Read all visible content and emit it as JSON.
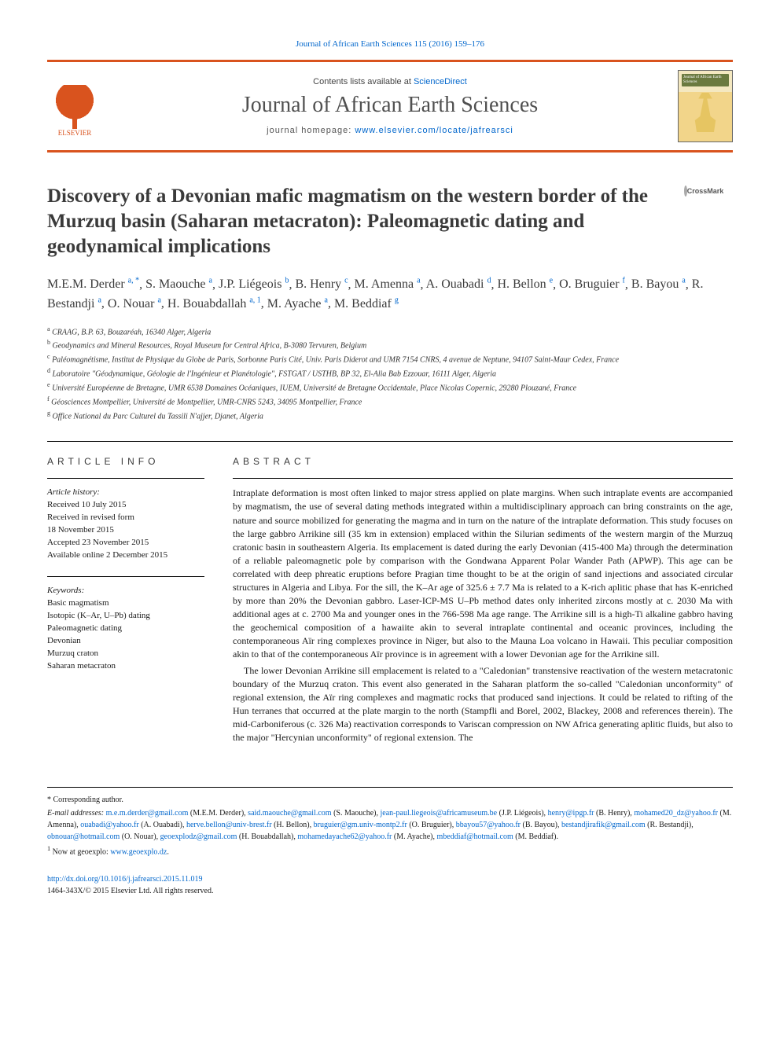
{
  "top_citation": "Journal of African Earth Sciences 115 (2016) 159–176",
  "header": {
    "contents_prefix": "Contents lists available at ",
    "contents_link": "ScienceDirect",
    "journal_title": "Journal of African Earth Sciences",
    "homepage_prefix": "journal homepage: ",
    "homepage_url": "www.elsevier.com/locate/jafrearsci",
    "publisher": "ELSEVIER",
    "cover_label": "Journal of African Earth Sciences"
  },
  "crossmark_label": "CrossMark",
  "title": "Discovery of a Devonian mafic magmatism on the western border of the Murzuq basin (Saharan metacraton): Paleomagnetic dating and geodynamical implications",
  "authors_html_parts": [
    {
      "name": "M.E.M. Derder",
      "sup": "a, *"
    },
    {
      "name": "S. Maouche",
      "sup": "a"
    },
    {
      "name": "J.P. Liégeois",
      "sup": "b"
    },
    {
      "name": "B. Henry",
      "sup": "c"
    },
    {
      "name": "M. Amenna",
      "sup": "a"
    },
    {
      "name": "A. Ouabadi",
      "sup": "d"
    },
    {
      "name": "H. Bellon",
      "sup": "e"
    },
    {
      "name": "O. Bruguier",
      "sup": "f"
    },
    {
      "name": "B. Bayou",
      "sup": "a"
    },
    {
      "name": "R. Bestandji",
      "sup": "a"
    },
    {
      "name": "O. Nouar",
      "sup": "a"
    },
    {
      "name": "H. Bouabdallah",
      "sup": "a, 1"
    },
    {
      "name": "M. Ayache",
      "sup": "a"
    },
    {
      "name": "M. Beddiaf",
      "sup": "g"
    }
  ],
  "affiliations": [
    {
      "key": "a",
      "text": "CRAAG, B.P. 63, Bouzaréah, 16340 Alger, Algeria"
    },
    {
      "key": "b",
      "text": "Geodynamics and Mineral Resources, Royal Museum for Central Africa, B-3080 Tervuren, Belgium"
    },
    {
      "key": "c",
      "text": "Paléomagnétisme, Institut de Physique du Globe de Paris, Sorbonne Paris Cité, Univ. Paris Diderot and UMR 7154 CNRS, 4 avenue de Neptune, 94107 Saint-Maur Cedex, France"
    },
    {
      "key": "d",
      "text": "Laboratoire \"Géodynamique, Géologie de l'Ingénieur et Planétologie\", FSTGAT / USTHB, BP 32, El-Alia Bab Ezzouar, 16111 Alger, Algeria"
    },
    {
      "key": "e",
      "text": "Université Européenne de Bretagne, UMR 6538 Domaines Océaniques, IUEM, Université de Bretagne Occidentale, Place Nicolas Copernic, 29280 Plouzané, France"
    },
    {
      "key": "f",
      "text": "Géosciences Montpellier, Université de Montpellier, UMR-CNRS 5243, 34095 Montpellier, France"
    },
    {
      "key": "g",
      "text": "Office National du Parc Culturel du Tassili N'ajjer, Djanet, Algeria"
    }
  ],
  "article_info": {
    "heading": "article info",
    "history_label": "Article history:",
    "history": [
      "Received 10 July 2015",
      "Received in revised form",
      "18 November 2015",
      "Accepted 23 November 2015",
      "Available online 2 December 2015"
    ],
    "keywords_label": "Keywords:",
    "keywords": [
      "Basic magmatism",
      "Isotopic (K–Ar, U–Pb) dating",
      "Paleomagnetic dating",
      "Devonian",
      "Murzuq craton",
      "Saharan metacraton"
    ]
  },
  "abstract": {
    "heading": "abstract",
    "paragraphs": [
      "Intraplate deformation is most often linked to major stress applied on plate margins. When such intraplate events are accompanied by magmatism, the use of several dating methods integrated within a multidisciplinary approach can bring constraints on the age, nature and source mobilized for generating the magma and in turn on the nature of the intraplate deformation. This study focuses on the large gabbro Arrikine sill (35 km in extension) emplaced within the Silurian sediments of the western margin of the Murzuq cratonic basin in southeastern Algeria. Its emplacement is dated during the early Devonian (415-400 Ma) through the determination of a reliable paleomagnetic pole by comparison with the Gondwana Apparent Polar Wander Path (APWP). This age can be correlated with deep phreatic eruptions before Pragian time thought to be at the origin of sand injections and associated circular structures in Algeria and Libya. For the sill, the K–Ar age of 325.6 ± 7.7 Ma is related to a K-rich aplitic phase that has K-enriched by more than 20% the Devonian gabbro. Laser-ICP-MS U–Pb method dates only inherited zircons mostly at c. 2030 Ma with additional ages at c. 2700 Ma and younger ones in the 766-598 Ma age range. The Arrikine sill is a high-Ti alkaline gabbro having the geochemical composition of a hawaiite akin to several intraplate continental and oceanic provinces, including the contemporaneous Aïr ring complexes province in Niger, but also to the Mauna Loa volcano in Hawaii. This peculiar composition akin to that of the contemporaneous Aïr province is in agreement with a lower Devonian age for the Arrikine sill.",
      "The lower Devonian Arrikine sill emplacement is related to a \"Caledonian\" transtensive reactivation of the western metacratonic boundary of the Murzuq craton. This event also generated in the Saharan platform the so-called \"Caledonian unconformity\" of regional extension, the Aïr ring complexes and magmatic rocks that produced sand injections. It could be related to rifting of the Hun terranes that occurred at the plate margin to the north (Stampfli and Borel, 2002, Blackey, 2008 and references therein). The mid-Carboniferous (c. 326 Ma) reactivation corresponds to Variscan compression on NW Africa generating aplitic fluids, but also to the major \"Hercynian unconformity\" of regional extension. The"
    ]
  },
  "footnotes": {
    "corresponding": "* Corresponding author.",
    "email_label": "E-mail addresses:",
    "emails": [
      {
        "addr": "m.e.m.derder@gmail.com",
        "who": "(M.E.M. Derder)"
      },
      {
        "addr": "said.maouche@gmail.com",
        "who": "(S. Maouche)"
      },
      {
        "addr": "jean-paul.liegeois@africamuseum.be",
        "who": "(J.P. Liégeois)"
      },
      {
        "addr": "henry@ipgp.fr",
        "who": "(B. Henry)"
      },
      {
        "addr": "mohamed20_dz@yahoo.fr",
        "who": "(M. Amenna)"
      },
      {
        "addr": "ouabadi@yahoo.fr",
        "who": "(A. Ouabadi)"
      },
      {
        "addr": "herve.bellon@univ-brest.fr",
        "who": "(H. Bellon)"
      },
      {
        "addr": "bruguier@gm.univ-montp2.fr",
        "who": "(O. Bruguier)"
      },
      {
        "addr": "bbayou57@yahoo.fr",
        "who": "(B. Bayou)"
      },
      {
        "addr": "bestandjirafik@gmail.com",
        "who": "(R. Bestandji)"
      },
      {
        "addr": "obnouar@hotmail.com",
        "who": "(O. Nouar)"
      },
      {
        "addr": "geoexplodz@gmail.com",
        "who": "(H. Bouabdallah)"
      },
      {
        "addr": "mohamedayache62@yahoo.fr",
        "who": "(M. Ayache)"
      },
      {
        "addr": "mbeddiaf@hotmail.com",
        "who": "(M. Beddiaf)"
      }
    ],
    "note1_prefix": "Now at geoexplo: ",
    "note1_link": "www.geoexplo.dz",
    "note1_suffix": "."
  },
  "doi": {
    "url": "http://dx.doi.org/10.1016/j.jafrearsci.2015.11.019",
    "issn_line": "1464-343X/© 2015 Elsevier Ltd. All rights reserved."
  },
  "colors": {
    "accent": "#d9531e",
    "link": "#0066cc",
    "text": "#1a1a1a",
    "heading": "#3a3a3a"
  }
}
